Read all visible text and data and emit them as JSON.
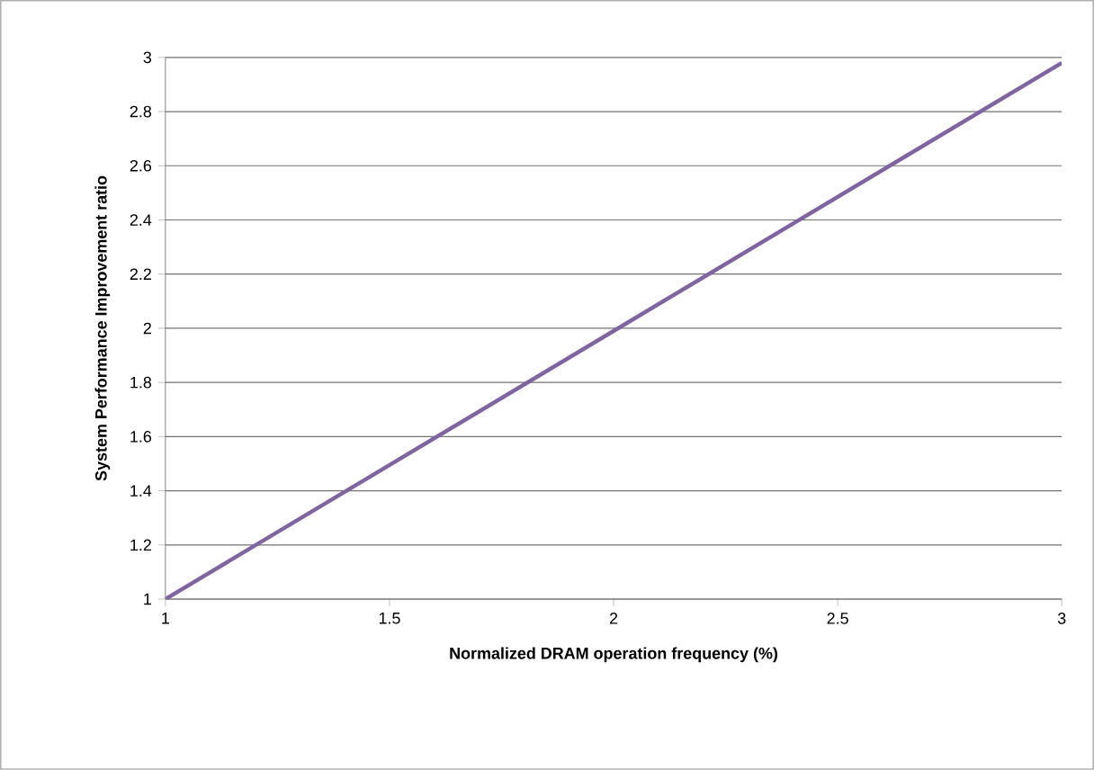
{
  "chart_data": {
    "type": "line",
    "xlabel": "Normalized DRAM operation frequency (%)",
    "ylabel": "System Performance Improvement ratio",
    "x": [
      1,
      3
    ],
    "values": [
      1,
      2.98
    ],
    "color": "#8064a2",
    "marker": "none",
    "xlim": [
      1,
      3
    ],
    "xticks": [
      1,
      1.5,
      2,
      2.5,
      3
    ],
    "ylim": [
      1,
      3
    ],
    "yticks": [
      1,
      1.2,
      1.4,
      1.6,
      1.8,
      2,
      2.2,
      2.4,
      2.6,
      2.8,
      3
    ],
    "grid": "y"
  }
}
